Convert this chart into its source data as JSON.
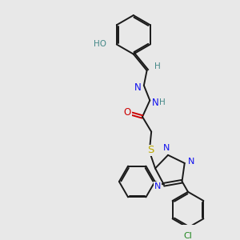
{
  "background_color": "#e8e8e8",
  "bond_color": "#1a1a1a",
  "atom_colors": {
    "N": "#1010ee",
    "O": "#cc0000",
    "S": "#bbaa00",
    "Cl": "#228822",
    "HO": "#448888",
    "H_ch": "#448888",
    "C": "#1a1a1a"
  },
  "figsize": [
    3.0,
    3.0
  ],
  "dpi": 100
}
